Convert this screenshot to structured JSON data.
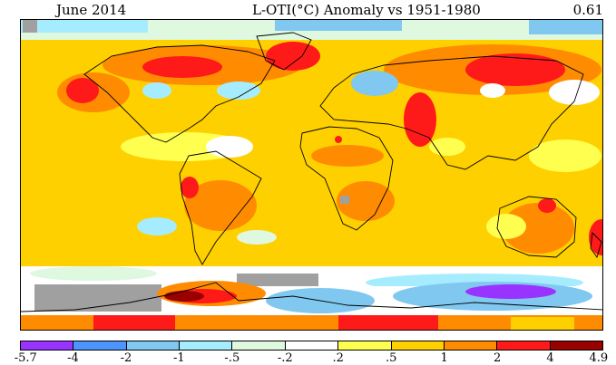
{
  "header": {
    "date": "June 2014",
    "title": "L-OTI(°C) Anomaly vs 1951-1980",
    "global_mean": "0.61"
  },
  "colorbar": {
    "labels": [
      "-5.7",
      "-4",
      "-2",
      "-1",
      "-.5",
      "-.2",
      ".2",
      ".5",
      "1",
      "2",
      "4",
      "4.9"
    ],
    "colors": [
      "#9933ff",
      "#4d94ff",
      "#80c8f0",
      "#a6ecff",
      "#dff8e0",
      "#ffffff",
      "#ffff50",
      "#ffd000",
      "#ff8c00",
      "#ff1a1a",
      "#990000"
    ]
  },
  "palette": {
    "land_line": "#000000",
    "missing_data": "#a0a0a0"
  }
}
